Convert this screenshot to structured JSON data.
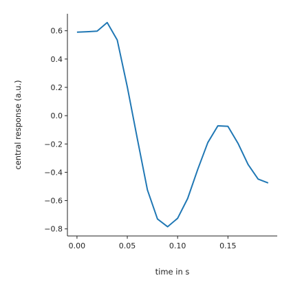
{
  "chart_data": {
    "type": "line",
    "xlabel": "time in s",
    "ylabel": "central response (a.u.)",
    "xlim": [
      -0.0095,
      0.199
    ],
    "ylim": [
      -0.85,
      0.72
    ],
    "xticks": [
      0.0,
      0.05,
      0.1,
      0.15
    ],
    "xtick_labels": [
      "0.00",
      "0.05",
      "0.10",
      "0.15"
    ],
    "yticks": [
      0.6,
      0.4,
      0.2,
      0.0,
      -0.2,
      -0.4,
      -0.6,
      -0.8
    ],
    "ytick_labels": [
      "0.6",
      "0.4",
      "0.2",
      "0.0",
      "−0.2",
      "−0.4",
      "−0.6",
      "−0.8"
    ],
    "grid": false,
    "line_color": "#1f77b4",
    "series": [
      {
        "x": [
          0.0,
          0.01,
          0.02,
          0.03,
          0.04,
          0.05,
          0.06,
          0.07,
          0.08,
          0.09,
          0.1,
          0.11,
          0.12,
          0.13,
          0.14,
          0.15,
          0.16,
          0.17,
          0.18,
          0.19
        ],
        "y": [
          0.59,
          0.593,
          0.597,
          0.658,
          0.535,
          0.205,
          -0.165,
          -0.525,
          -0.73,
          -0.785,
          -0.725,
          -0.585,
          -0.38,
          -0.19,
          -0.072,
          -0.075,
          -0.195,
          -0.345,
          -0.448,
          -0.475
        ]
      }
    ]
  }
}
